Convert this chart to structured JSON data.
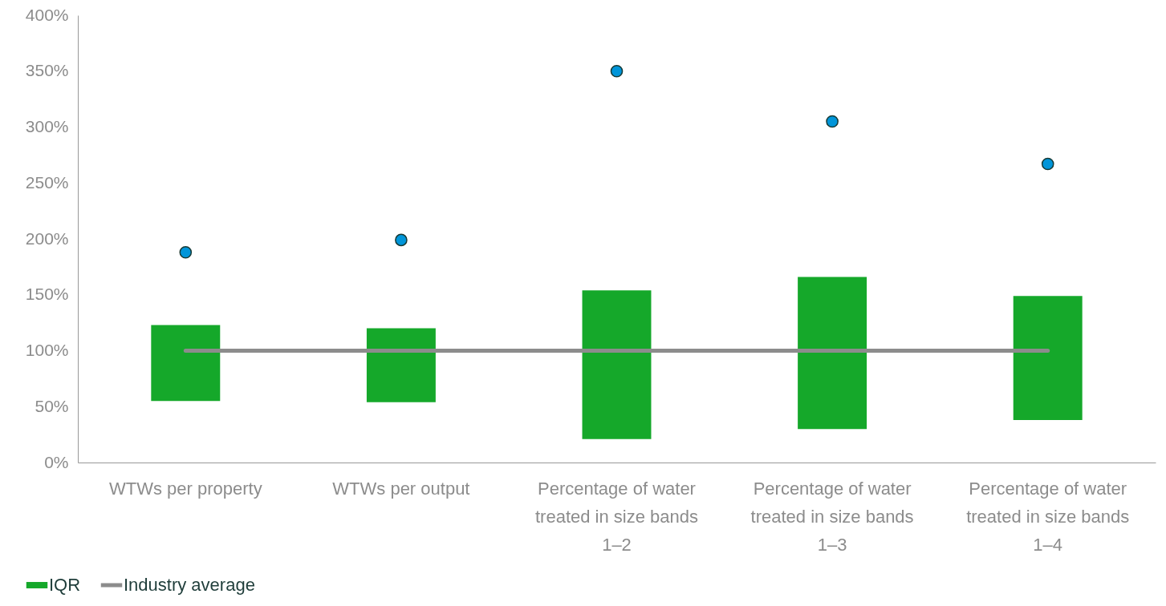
{
  "chart_data": {
    "type": "bar",
    "categories": [
      "WTWs per property",
      "WTWs per output",
      "Percentage of water treated in size bands 1–2",
      "Percentage of water treated in size bands 1–3",
      "Percentage of water treated in size bands 1–4"
    ],
    "series": [
      {
        "name": "IQR",
        "color": "#15a82a",
        "base": [
          55,
          54,
          21,
          30,
          38
        ],
        "values": [
          68,
          66,
          133,
          136,
          111
        ]
      },
      {
        "name": "Industry average",
        "type": "line",
        "color": "#8c8c8c",
        "values": [
          100,
          100,
          100,
          100,
          100
        ]
      },
      {
        "type": "scatter",
        "color": "#0095d9",
        "marker": "circle",
        "values": [
          188,
          199,
          350,
          305,
          267
        ]
      }
    ],
    "ylim": [
      0,
      400
    ],
    "yticks": [
      {
        "value": 0,
        "label": "0%"
      },
      {
        "value": 50,
        "label": "50%"
      },
      {
        "value": 100,
        "label": "100%"
      },
      {
        "value": 150,
        "label": "150%"
      },
      {
        "value": 200,
        "label": "200%"
      },
      {
        "value": 250,
        "label": "250%"
      },
      {
        "value": 300,
        "label": "300%"
      },
      {
        "value": 350,
        "label": "350%"
      },
      {
        "value": 400,
        "label": "400%"
      }
    ],
    "legend": "bottom left"
  }
}
